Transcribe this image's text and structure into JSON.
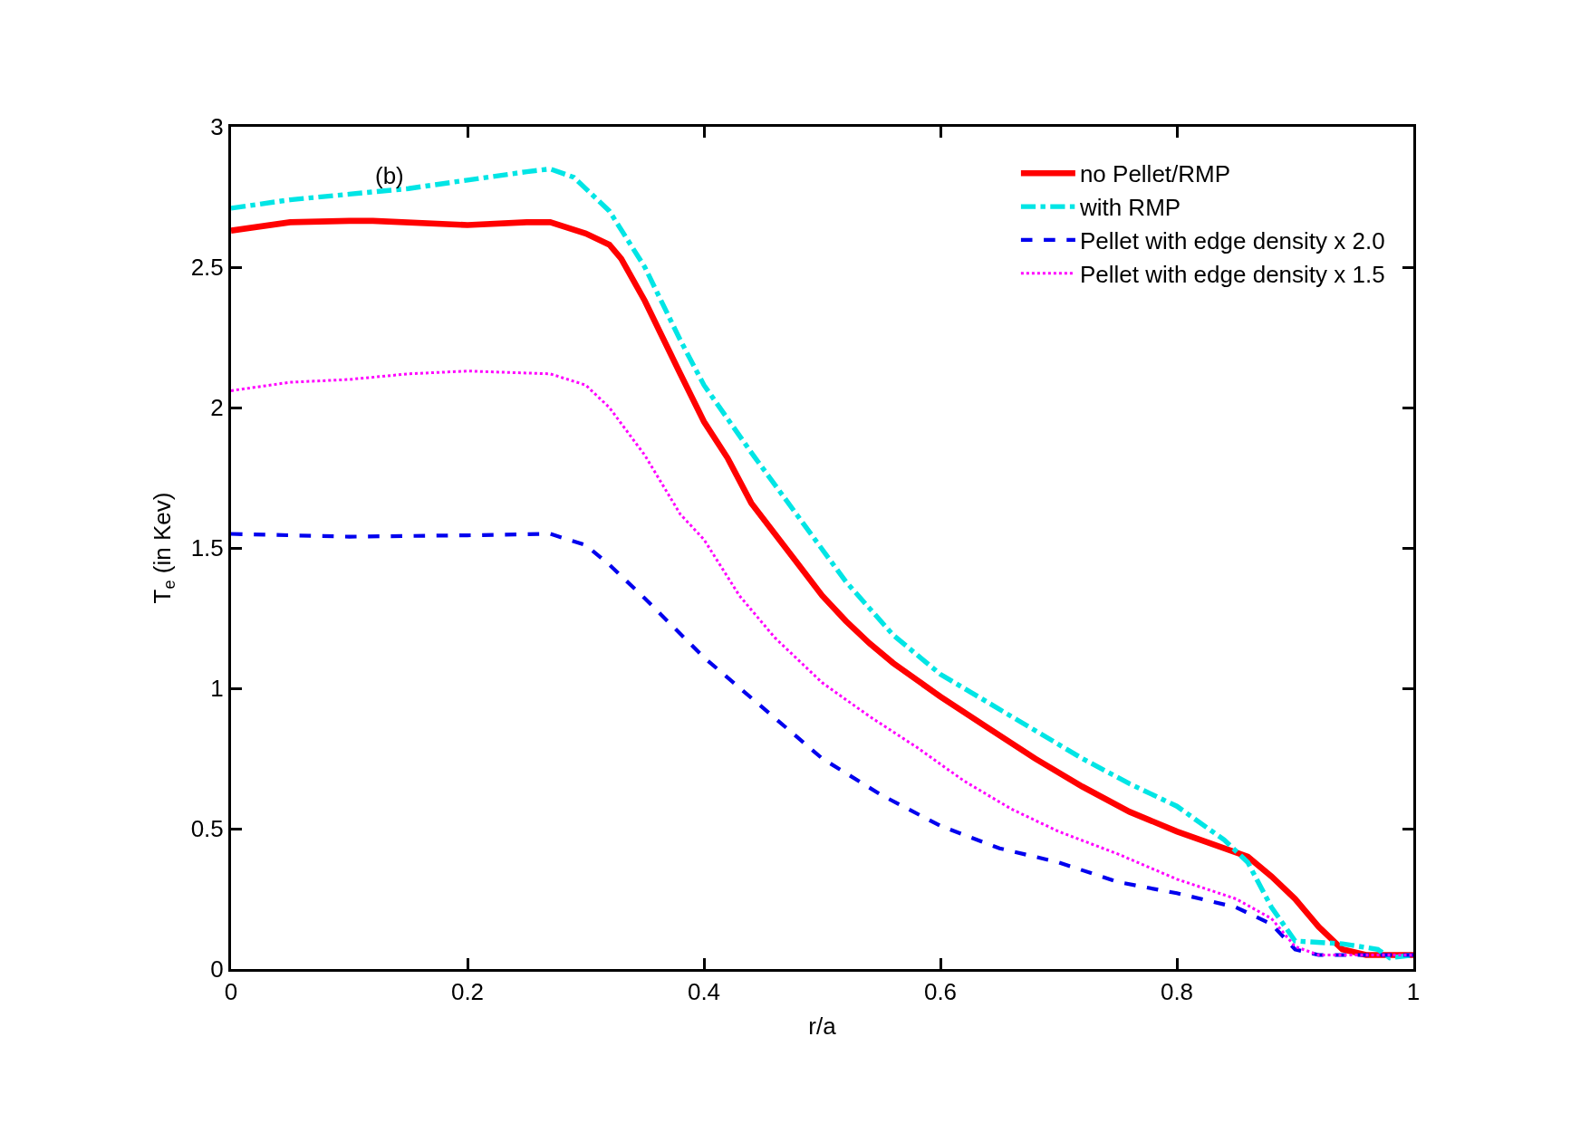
{
  "chart_data": {
    "type": "line",
    "xlabel": "r/a",
    "ylabel": "T$_{e}$ (in Kev)",
    "annotations": [
      "(b)"
    ],
    "xlim": [
      0,
      1
    ],
    "ylim": [
      0,
      3
    ],
    "xticks": [
      0,
      0.2,
      0.4,
      0.6,
      0.8,
      1
    ],
    "yticks": [
      0,
      0.5,
      1,
      1.5,
      2,
      2.5,
      3
    ],
    "legend": "top right",
    "series": [
      {
        "name": "no Pellet/RMP",
        "color": "#ff0000",
        "line_style": "solid",
        "x": [
          0,
          0.05,
          0.1,
          0.12,
          0.2,
          0.25,
          0.27,
          0.3,
          0.32,
          0.33,
          0.35,
          0.38,
          0.4,
          0.42,
          0.44,
          0.46,
          0.48,
          0.5,
          0.52,
          0.54,
          0.56,
          0.6,
          0.64,
          0.68,
          0.72,
          0.76,
          0.8,
          0.84,
          0.86,
          0.88,
          0.9,
          0.92,
          0.94,
          0.96,
          1.0
        ],
        "values": [
          2.63,
          2.66,
          2.665,
          2.665,
          2.65,
          2.66,
          2.66,
          2.62,
          2.58,
          2.53,
          2.38,
          2.12,
          1.95,
          1.82,
          1.66,
          1.55,
          1.44,
          1.33,
          1.24,
          1.16,
          1.09,
          0.97,
          0.86,
          0.75,
          0.65,
          0.56,
          0.49,
          0.43,
          0.4,
          0.33,
          0.25,
          0.15,
          0.07,
          0.05,
          0.05
        ]
      },
      {
        "name": "with RMP",
        "color": "#00e5e5",
        "line_style": "dashdot",
        "x": [
          0,
          0.05,
          0.1,
          0.15,
          0.2,
          0.25,
          0.27,
          0.29,
          0.32,
          0.35,
          0.38,
          0.4,
          0.44,
          0.48,
          0.52,
          0.56,
          0.6,
          0.64,
          0.68,
          0.72,
          0.76,
          0.8,
          0.84,
          0.86,
          0.88,
          0.9,
          0.94,
          0.97,
          0.98,
          1.0
        ],
        "values": [
          2.71,
          2.74,
          2.76,
          2.78,
          2.81,
          2.84,
          2.85,
          2.82,
          2.7,
          2.5,
          2.24,
          2.08,
          1.84,
          1.61,
          1.38,
          1.19,
          1.05,
          0.95,
          0.85,
          0.75,
          0.66,
          0.58,
          0.46,
          0.38,
          0.22,
          0.1,
          0.09,
          0.07,
          0.04,
          0.05
        ]
      },
      {
        "name": "Pellet with edge density x 2.0",
        "color": "#0000ee",
        "line_style": "dashed",
        "x": [
          0,
          0.1,
          0.2,
          0.27,
          0.3,
          0.32,
          0.35,
          0.4,
          0.45,
          0.5,
          0.55,
          0.6,
          0.65,
          0.7,
          0.75,
          0.8,
          0.85,
          0.88,
          0.9,
          0.92,
          1.0
        ],
        "values": [
          1.55,
          1.54,
          1.545,
          1.55,
          1.51,
          1.44,
          1.32,
          1.11,
          0.93,
          0.75,
          0.62,
          0.51,
          0.43,
          0.38,
          0.31,
          0.27,
          0.22,
          0.16,
          0.07,
          0.05,
          0.05
        ]
      },
      {
        "name": "Pellet with edge density x 1.5",
        "color": "#ff00ff",
        "line_style": "dotted",
        "x": [
          0,
          0.05,
          0.1,
          0.15,
          0.2,
          0.27,
          0.3,
          0.32,
          0.35,
          0.38,
          0.4,
          0.43,
          0.46,
          0.5,
          0.54,
          0.58,
          0.62,
          0.66,
          0.7,
          0.75,
          0.8,
          0.85,
          0.88,
          0.9,
          0.92,
          1.0
        ],
        "values": [
          2.06,
          2.09,
          2.1,
          2.12,
          2.13,
          2.12,
          2.08,
          2.0,
          1.83,
          1.62,
          1.53,
          1.33,
          1.18,
          1.02,
          0.9,
          0.79,
          0.67,
          0.57,
          0.49,
          0.41,
          0.32,
          0.25,
          0.18,
          0.08,
          0.05,
          0.05
        ]
      }
    ]
  }
}
